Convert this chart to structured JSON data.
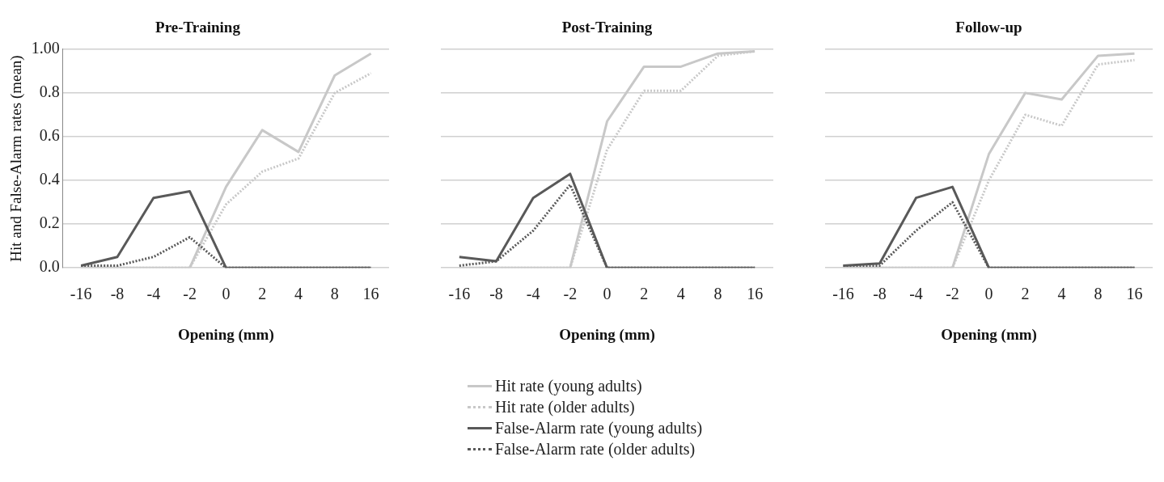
{
  "chart_data": [
    {
      "type": "line",
      "title": "Pre-Training",
      "xlabel": "Opening (mm)",
      "ylabel": "Hit and False-Alarm rates (mean)",
      "categories": [
        "-16",
        "-8",
        "-4",
        "-2",
        "0",
        "2",
        "4",
        "8",
        "16"
      ],
      "ylim": [
        0,
        1
      ],
      "yticks": [
        {
          "value": 0,
          "label": "0.0"
        },
        {
          "value": 0.2,
          "label": "0.2"
        },
        {
          "value": 0.4,
          "label": "0.4"
        },
        {
          "value": 0.6,
          "label": "0.6"
        },
        {
          "value": 0.8,
          "label": "0.8"
        },
        {
          "value": 1,
          "label": "1.00"
        }
      ],
      "grid": "y",
      "marker": "none",
      "legend": "bottom",
      "series": [
        {
          "name": "Hit rate (young adults)",
          "color": "#c8c8c8",
          "line_style": "solid",
          "values": [
            0,
            0,
            0,
            0,
            0.37,
            0.63,
            0.53,
            0.88,
            0.98
          ]
        },
        {
          "name": "Hit rate (older adults)",
          "color": "#c8c8c8",
          "line_style": "dotted",
          "values": [
            0,
            0,
            0,
            0,
            0.29,
            0.44,
            0.5,
            0.8,
            0.89
          ]
        },
        {
          "name": "False-Alarm rate (young adults)",
          "color": "#595959",
          "line_style": "solid",
          "values": [
            0.01,
            0.05,
            0.32,
            0.35,
            0,
            0,
            0,
            0,
            0
          ]
        },
        {
          "name": "False-Alarm rate (older adults)",
          "color": "#595959",
          "line_style": "dotted",
          "values": [
            0.01,
            0.01,
            0.05,
            0.14,
            0,
            0,
            0,
            0,
            0
          ]
        }
      ]
    },
    {
      "type": "line",
      "title": "Post-Training",
      "xlabel": "Opening (mm)",
      "categories": [
        "-16",
        "-8",
        "-4",
        "-2",
        "0",
        "2",
        "4",
        "8",
        "16"
      ],
      "ylim": [
        0,
        1
      ],
      "yticks": [
        0,
        0.2,
        0.4,
        0.6,
        0.8,
        1
      ],
      "tick_labels": "x",
      "grid": "y",
      "marker": "none",
      "series": [
        {
          "color": "#c8c8c8",
          "line_style": "solid",
          "values": [
            0,
            0,
            0,
            0,
            0.67,
            0.92,
            0.92,
            0.98,
            0.99
          ]
        },
        {
          "color": "#c8c8c8",
          "line_style": "dotted",
          "values": [
            0,
            0,
            0,
            0,
            0.54,
            0.81,
            0.81,
            0.97,
            0.99
          ]
        },
        {
          "color": "#595959",
          "line_style": "solid",
          "values": [
            0.05,
            0.03,
            0.32,
            0.43,
            0,
            0,
            0,
            0,
            0
          ]
        },
        {
          "color": "#595959",
          "line_style": "dotted",
          "values": [
            0.01,
            0.03,
            0.17,
            0.38,
            0,
            0,
            0,
            0,
            0
          ]
        }
      ]
    },
    {
      "type": "line",
      "title": "Follow-up",
      "xlabel": "Opening (mm)",
      "categories": [
        "-16",
        "-8",
        "-4",
        "-2",
        "0",
        "2",
        "4",
        "8",
        "16"
      ],
      "ylim": [
        0,
        1
      ],
      "yticks": [
        0,
        0.2,
        0.4,
        0.6,
        0.8,
        1
      ],
      "tick_labels": "x",
      "grid": "y",
      "marker": "none",
      "series": [
        {
          "color": "#c8c8c8",
          "line_style": "solid",
          "values": [
            0,
            0,
            0,
            0,
            0.52,
            0.8,
            0.77,
            0.97,
            0.98
          ]
        },
        {
          "color": "#c8c8c8",
          "line_style": "dotted",
          "values": [
            0,
            0,
            0,
            0,
            0.4,
            0.7,
            0.65,
            0.93,
            0.95
          ]
        },
        {
          "color": "#595959",
          "line_style": "solid",
          "values": [
            0.01,
            0.02,
            0.32,
            0.37,
            0,
            0,
            0,
            0,
            0
          ]
        },
        {
          "color": "#595959",
          "line_style": "dotted",
          "values": [
            0.01,
            0.01,
            0.17,
            0.3,
            0,
            0,
            0,
            0,
            0
          ]
        }
      ]
    }
  ]
}
